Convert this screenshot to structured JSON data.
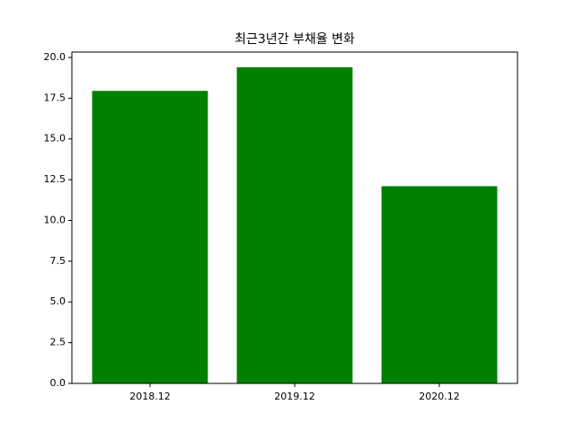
{
  "chart_data": {
    "type": "bar",
    "title": "최근3년간 부채율 변화",
    "categories": [
      "2018.12",
      "2019.12",
      "2020.12"
    ],
    "values": [
      17.95,
      19.4,
      12.1
    ],
    "color": "#008000",
    "ylim": [
      0,
      20.33
    ],
    "yticks": [
      {
        "value": 0,
        "label": "0.0"
      },
      2.5,
      {
        "value": 5,
        "label": "5.0"
      },
      7.5,
      {
        "value": 10,
        "label": "10.0"
      },
      12.5,
      {
        "value": 15,
        "label": "15.0"
      },
      17.5,
      {
        "value": 20,
        "label": "20.0"
      }
    ],
    "grid": false
  }
}
